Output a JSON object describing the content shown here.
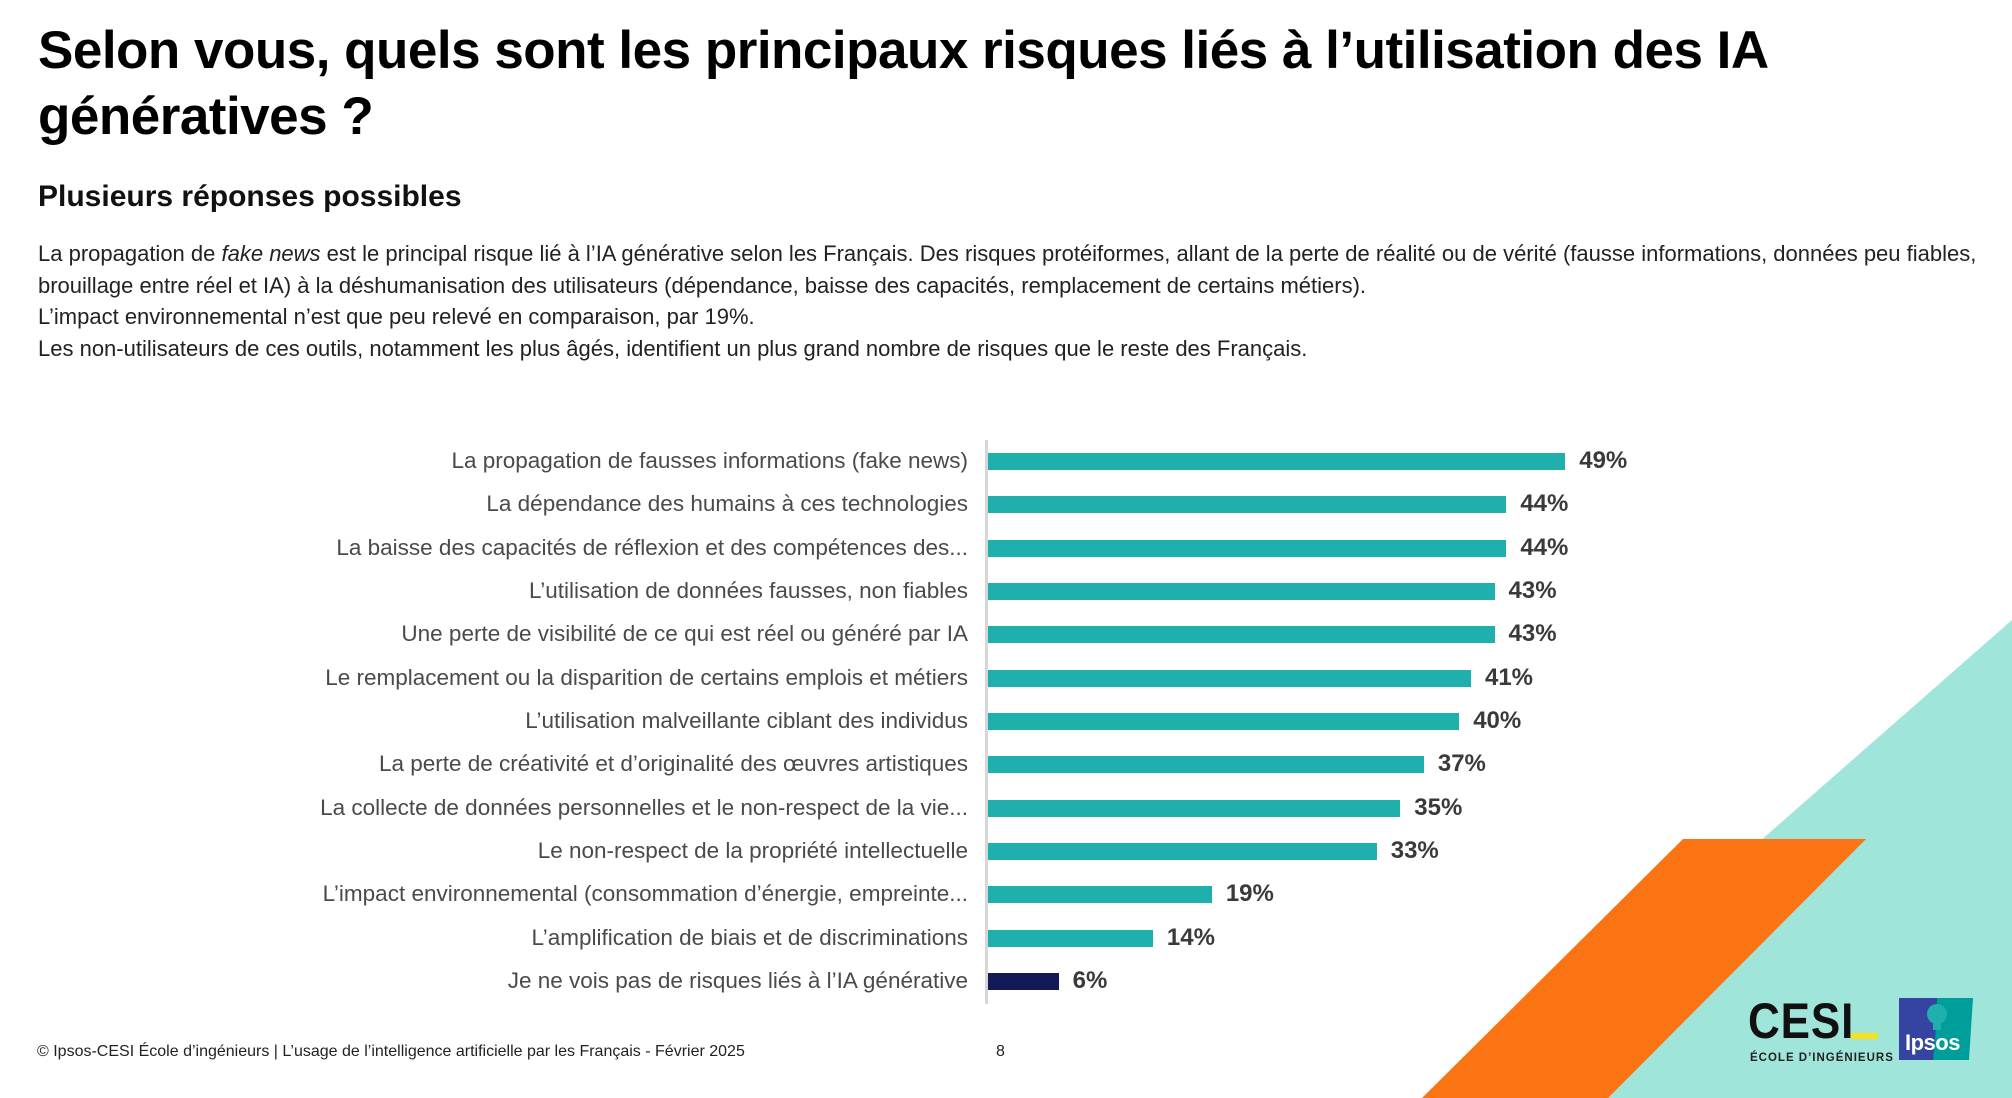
{
  "header": {
    "title": "Selon vous, quels sont les principaux risques liés à l’utilisation des IA génératives ?",
    "subtitle": "Plusieurs réponses possibles"
  },
  "summary": {
    "line1_prefix": "La propagation de ",
    "line1_italic": "fake news",
    "line1_suffix": " est le principal risque lié à l’IA générative selon les Français. Des risques protéiformes, allant de la perte de réalité ou  de vérité (fausse informations, données peu fiables, brouillage entre réel et IA)  à la déshumanisation des utilisateurs (dépendance, baisse des capacités, remplacement de certains métiers).",
    "line2": "L’impact environnemental n’est que peu relevé en comparaison, par 19%.",
    "line3": "Les non-utilisateurs de ces outils, notamment les plus âgés, identifient un plus grand nombre de risques que le reste des Français."
  },
  "chart_data": {
    "type": "bar",
    "orientation": "horizontal",
    "title": "Selon vous, quels sont les principaux risques liés à l’utilisation des IA génératives ?",
    "xlabel": "",
    "ylabel": "",
    "xlim": [
      0,
      100
    ],
    "grid": false,
    "unit": "%",
    "categories": [
      "La propagation de fausses informations (fake news)",
      "La dépendance des humains à ces technologies",
      "La baisse des capacités de réflexion et des compétences des...",
      "L’utilisation de données fausses, non fiables",
      "Une perte de visibilité de ce qui est réel ou généré par IA",
      "Le remplacement ou la disparition de certains emplois et métiers",
      "L’utilisation malveillante ciblant des individus",
      "La perte de créativité et d’originalité des œuvres artistiques",
      "La collecte de données personnelles et le non-respect de la vie...",
      "Le non-respect de la propriété intellectuelle",
      "L’impact environnemental (consommation d’énergie, empreinte...",
      "L’amplification de biais et de discriminations",
      "Je ne vois pas de risques liés à l’IA générative"
    ],
    "values": [
      49,
      44,
      44,
      43,
      43,
      41,
      40,
      37,
      35,
      33,
      19,
      14,
      6
    ],
    "value_labels": [
      "49%",
      "44%",
      "44%",
      "43%",
      "43%",
      "41%",
      "40%",
      "37%",
      "35%",
      "33%",
      "19%",
      "14%",
      "6%"
    ],
    "bar_colors": [
      "#1fafad",
      "#1fafad",
      "#1fafad",
      "#1fafad",
      "#1fafad",
      "#1fafad",
      "#1fafad",
      "#1fafad",
      "#1fafad",
      "#1fafad",
      "#1fafad",
      "#1fafad",
      "#141a58"
    ]
  },
  "footer": {
    "source": "© Ipsos-CESI École d’ingénieurs | L’usage de l’intelligence artificielle par les Français - Février 2025",
    "page_number": "8"
  },
  "logos": {
    "cesi_word": "CESI",
    "cesi_sub": "ÉCOLE D’INGÉNIEURS",
    "ipsos_word": "Ipsos"
  },
  "colors": {
    "teal_bar": "#1fafad",
    "navy_bar": "#141a58",
    "orange": "#fb7414",
    "mint": "#a0e5d9",
    "cesi_yellow": "#f5e11d",
    "ipsos_blue": "#3444a0",
    "ipsos_teal": "#009e9a"
  }
}
